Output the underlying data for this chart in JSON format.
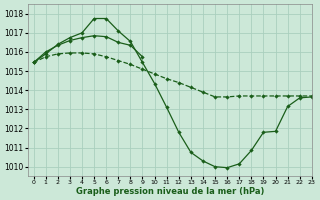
{
  "title": "Graphe pression niveau de la mer (hPa)",
  "bg_color": "#cce8d8",
  "grid_color": "#aacfbe",
  "line_color": "#1a5e1a",
  "xlim": [
    -0.5,
    23
  ],
  "ylim": [
    1009.5,
    1018.5
  ],
  "yticks": [
    1010,
    1011,
    1012,
    1013,
    1014,
    1015,
    1016,
    1017,
    1018
  ],
  "xticks": [
    0,
    1,
    2,
    3,
    4,
    5,
    6,
    7,
    8,
    9,
    10,
    11,
    12,
    13,
    14,
    15,
    16,
    17,
    18,
    19,
    20,
    21,
    22,
    23
  ],
  "line1_x": [
    0,
    1,
    2,
    3,
    4,
    5,
    6,
    7,
    8,
    9,
    10,
    11,
    12,
    13,
    14,
    15,
    16,
    17,
    18,
    19,
    20,
    21,
    22,
    23
  ],
  "line1_y": [
    1015.45,
    1015.9,
    1016.4,
    1016.75,
    1017.0,
    1017.75,
    1017.75,
    1017.1,
    1016.55,
    1015.45,
    1014.35,
    1013.1,
    1011.8,
    1010.75,
    1010.3,
    1010.0,
    1009.95,
    1010.15,
    1010.85,
    1011.8,
    1011.85,
    1013.15,
    1013.6,
    1013.65
  ],
  "line2_x": [
    0,
    1,
    2,
    3,
    4,
    5,
    6,
    7,
    8,
    9,
    10,
    11,
    12,
    13,
    14,
    15,
    16,
    17,
    18,
    19,
    20,
    21,
    22,
    23
  ],
  "line2_y": [
    1015.45,
    1015.75,
    1015.9,
    1015.95,
    1015.95,
    1015.9,
    1015.75,
    1015.55,
    1015.35,
    1015.1,
    1014.85,
    1014.6,
    1014.4,
    1014.15,
    1013.9,
    1013.65,
    1013.65,
    1013.7,
    1013.7,
    1013.7,
    1013.7,
    1013.7,
    1013.7,
    1013.7
  ],
  "line3_x": [
    0,
    1,
    2,
    3,
    4,
    5,
    6,
    7,
    8,
    9
  ],
  "line3_y": [
    1015.45,
    1016.0,
    1016.35,
    1016.6,
    1016.75,
    1016.85,
    1016.8,
    1016.5,
    1016.35,
    1015.75
  ]
}
